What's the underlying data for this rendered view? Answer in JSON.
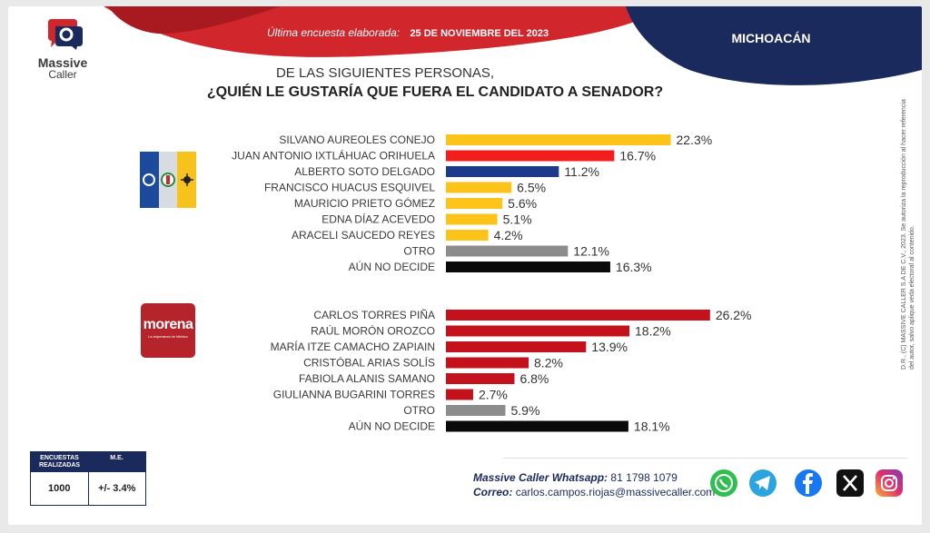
{
  "header": {
    "brand_name_1": "Massive",
    "brand_name_2": "Caller",
    "survey_label": "Última encuesta elaborada:",
    "survey_date": "25 DE NOVIEMBRE DEL 2023",
    "state": "MICHOACÁN"
  },
  "question": {
    "line1": "DE LAS SIGUIENTES PERSONAS,",
    "line2": "¿QUIÉN LE GUSTARÍA QUE FUERA EL CANDIDATO A SENADOR?"
  },
  "parties": {
    "coalition_logos": [
      "PAN",
      "PRI",
      "PRD"
    ],
    "morena_name": "morena",
    "morena_slogan": "La esperanza de México"
  },
  "chart_data": [
    {
      "type": "bar",
      "orientation": "horizontal",
      "categories": [
        "SILVANO AUREOLES CONEJO",
        "JUAN ANTONIO IXTLÁHUAC ORIHUELA",
        "ALBERTO SOTO DELGADO",
        "FRANCISCO HUACUS ESQUIVEL",
        "MAURICIO PRIETO GÓMEZ",
        "EDNA DÍAZ ACEVEDO",
        "ARACELI SAUCEDO REYES",
        "OTRO",
        "AÚN NO DECIDE"
      ],
      "values": [
        22.3,
        16.7,
        11.2,
        6.5,
        5.6,
        5.1,
        4.2,
        12.1,
        16.3
      ],
      "value_labels": [
        "22.3%",
        "16.7%",
        "11.2%",
        "6.5%",
        "5.6%",
        "5.1%",
        "4.2%",
        "12.1%",
        "16.3%"
      ],
      "colors": [
        "#fcc419",
        "#f21d1d",
        "#1c3a8c",
        "#fcc419",
        "#fcc419",
        "#fcc419",
        "#fcc419",
        "#8c8c8c",
        "#0a0a0a"
      ],
      "unit": "%"
    },
    {
      "type": "bar",
      "orientation": "horizontal",
      "categories": [
        "CARLOS TORRES PIÑA",
        "RAÚL MORÓN OROZCO",
        "MARÍA ITZE CAMACHO ZAPIAIN",
        "CRISTÓBAL ARIAS SOLÍS",
        "FABIOLA ALANIS SAMANO",
        "GIULIANNA BUGARINI TORRES",
        "OTRO",
        "AÚN NO DECIDE"
      ],
      "values": [
        26.2,
        18.2,
        13.9,
        8.2,
        6.8,
        2.7,
        5.9,
        18.1
      ],
      "value_labels": [
        "26.2%",
        "18.2%",
        "13.9%",
        "8.2%",
        "6.8%",
        "2.7%",
        "5.9%",
        "18.1%"
      ],
      "colors": [
        "#c4121d",
        "#c4121d",
        "#c4121d",
        "#c4121d",
        "#c4121d",
        "#c4121d",
        "#8c8c8c",
        "#0a0a0a"
      ],
      "unit": "%"
    }
  ],
  "footer": {
    "copyright": "D.R., (C) MASSIVE CALLER S.A DE C.V., 2023. Se autoriza la reproducción al hacer referencia del autor, salvo aplique veda electoral al contenido.",
    "stats": {
      "h1": "ENCUESTAS REALIZADAS",
      "h2": "M.E.",
      "v1": "1000",
      "v2": "+/- 3.4%"
    },
    "whatsapp_label": "Massive Caller Whatsapp:",
    "whatsapp_number": "81 1798 1079",
    "mail_label": "Correo:",
    "mail_value": "carlos.campos.riojas@massivecaller.com",
    "social_icons": [
      "whatsapp-icon",
      "telegram-icon",
      "facebook-icon",
      "x-icon",
      "instagram-icon"
    ]
  }
}
